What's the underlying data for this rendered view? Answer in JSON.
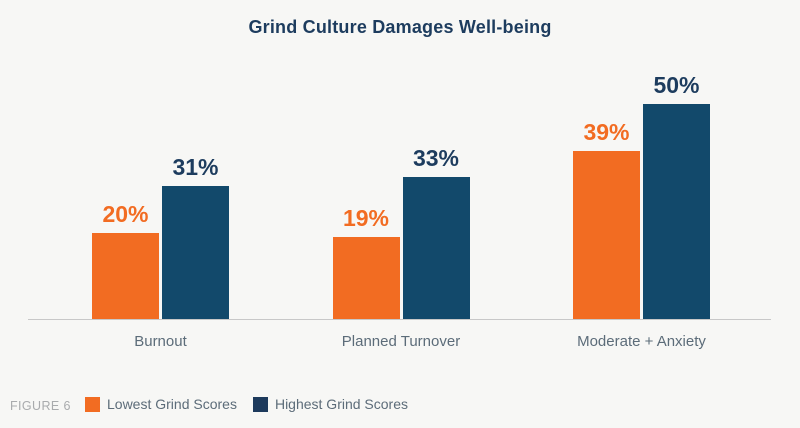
{
  "chart_data": {
    "type": "bar",
    "title": "Grind Culture Damages Well-being",
    "categories": [
      "Burnout",
      "Planned Turnover",
      "Moderate + Anxiety"
    ],
    "series": [
      {
        "name": "Lowest Grind Scores",
        "values": [
          20,
          19,
          39
        ],
        "color": "#F26C22",
        "label_color": "#F26C22",
        "swatch_color": "#F26C22"
      },
      {
        "name": "Highest Grind Scores",
        "values": [
          31,
          33,
          50
        ],
        "color": "#12496B",
        "label_color": "#1D3C5E",
        "swatch_color": "#1D3A5C"
      }
    ],
    "value_suffix": "%",
    "ylim": [
      0,
      55
    ],
    "data_labels": "shown above bars",
    "grid": false,
    "legend_position": "bottom-left",
    "axis_line_color": "#C8C8C8"
  },
  "footer": {
    "figure_label": "FIGURE 6"
  }
}
